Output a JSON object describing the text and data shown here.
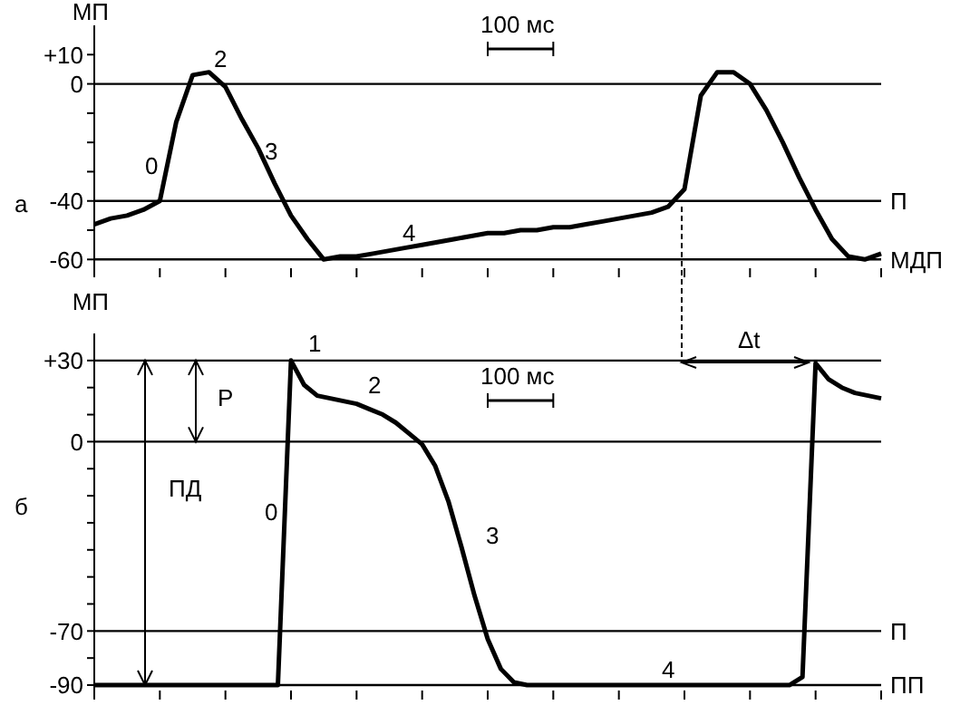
{
  "chart_data": [
    {
      "type": "line",
      "ylabel": "МП",
      "categories": [
        null,
        null,
        null,
        null,
        null,
        null,
        null,
        null,
        null,
        null,
        null,
        null,
        null,
        null,
        null,
        null,
        null,
        null,
        null,
        null,
        null,
        null,
        null,
        null,
        null,
        null,
        null,
        null,
        null,
        null,
        null,
        null,
        null,
        null,
        null,
        null,
        null,
        null,
        null,
        null,
        null,
        null,
        null,
        null,
        null,
        null,
        null,
        null,
        null
      ],
      "ylim": [
        -63,
        20
      ],
      "yticks": [
        {
          "value": 10,
          "label": "+10"
        },
        0,
        {
          "value": -10,
          "label": null
        },
        {
          "value": -20,
          "label": null
        },
        {
          "value": -30,
          "label": null
        },
        -40,
        {
          "value": -50,
          "label": null
        },
        -60
      ],
      "tick_labels": "y",
      "series": [
        {
          "color": "#000000",
          "values": [
            -48,
            -46,
            -45,
            -43,
            -40,
            -13,
            3,
            4,
            -1,
            -12,
            -22,
            -34,
            -45,
            -53,
            -60,
            -59,
            -59,
            -58,
            -57,
            -56,
            -55,
            -54,
            -53,
            -52,
            -51,
            -51,
            -50,
            -50,
            -49,
            -49,
            -48,
            -47,
            -46,
            -45,
            -44,
            -42,
            -36,
            -4,
            4,
            4,
            0,
            -9,
            -20,
            -32,
            -43,
            -53,
            -59,
            -60,
            -58
          ]
        }
      ],
      "ref_lines": [
        {
          "axis": "y",
          "value": 0,
          "label": null
        },
        {
          "axis": "y",
          "value": -40,
          "label": "П"
        },
        {
          "axis": "y",
          "value": -60,
          "label": "МДП"
        }
      ],
      "annotations": [
        "а",
        "100 мс",
        "0",
        "2",
        "3",
        "4"
      ]
    },
    {
      "type": "line",
      "ylabel": "МП",
      "categories": [
        null,
        null,
        null,
        null,
        null,
        null,
        null,
        null,
        null,
        null,
        null,
        null,
        null,
        null,
        null,
        null,
        null,
        null,
        null,
        null,
        null,
        null,
        null,
        null,
        null,
        null,
        null,
        null,
        null,
        null,
        null,
        null,
        null,
        null,
        null,
        null,
        null,
        null,
        null,
        null,
        null,
        null,
        null,
        null,
        null,
        null,
        null,
        null,
        null,
        null,
        null,
        null,
        null,
        null,
        null,
        null,
        null,
        null,
        null,
        null,
        null
      ],
      "ylim": [
        -92,
        40
      ],
      "yticks": [
        {
          "value": 30,
          "label": "+30"
        },
        {
          "value": 20,
          "label": null
        },
        {
          "value": 10,
          "label": null
        },
        0,
        {
          "value": -10,
          "label": null
        },
        {
          "value": -20,
          "label": null
        },
        {
          "value": -30,
          "label": null
        },
        {
          "value": -40,
          "label": null
        },
        {
          "value": -50,
          "label": null
        },
        {
          "value": -60,
          "label": null
        },
        -70,
        {
          "value": -80,
          "label": null
        },
        -90
      ],
      "tick_labels": "y",
      "series": [
        {
          "color": "#000000",
          "values": [
            -90,
            -90,
            -90,
            -90,
            -90,
            -90,
            -90,
            -90,
            -90,
            -90,
            -90,
            -90,
            -90,
            -90,
            -90,
            30,
            21,
            17,
            16,
            15,
            14,
            12,
            10,
            7,
            3,
            -1,
            -9,
            -22,
            -39,
            -57,
            -73,
            -84,
            -89,
            -90,
            -90,
            -90,
            -90,
            -90,
            -90,
            -90,
            -90,
            -90,
            -90,
            -90,
            -90,
            -90,
            -90,
            -90,
            -90,
            -90,
            -90,
            -90,
            -90,
            -90,
            -87,
            29,
            23,
            20,
            18,
            17,
            16
          ]
        }
      ],
      "ref_lines": [
        {
          "axis": "y",
          "value": 30,
          "label": null
        },
        {
          "axis": "y",
          "value": 0,
          "label": null
        },
        {
          "axis": "y",
          "value": -70,
          "label": "П"
        },
        {
          "axis": "y",
          "value": -90,
          "label": "ПП"
        }
      ],
      "annotations": [
        "б",
        "100 мс",
        "Р",
        "ПД",
        "Δt",
        "1",
        "2",
        "0",
        "3",
        "4"
      ]
    }
  ]
}
